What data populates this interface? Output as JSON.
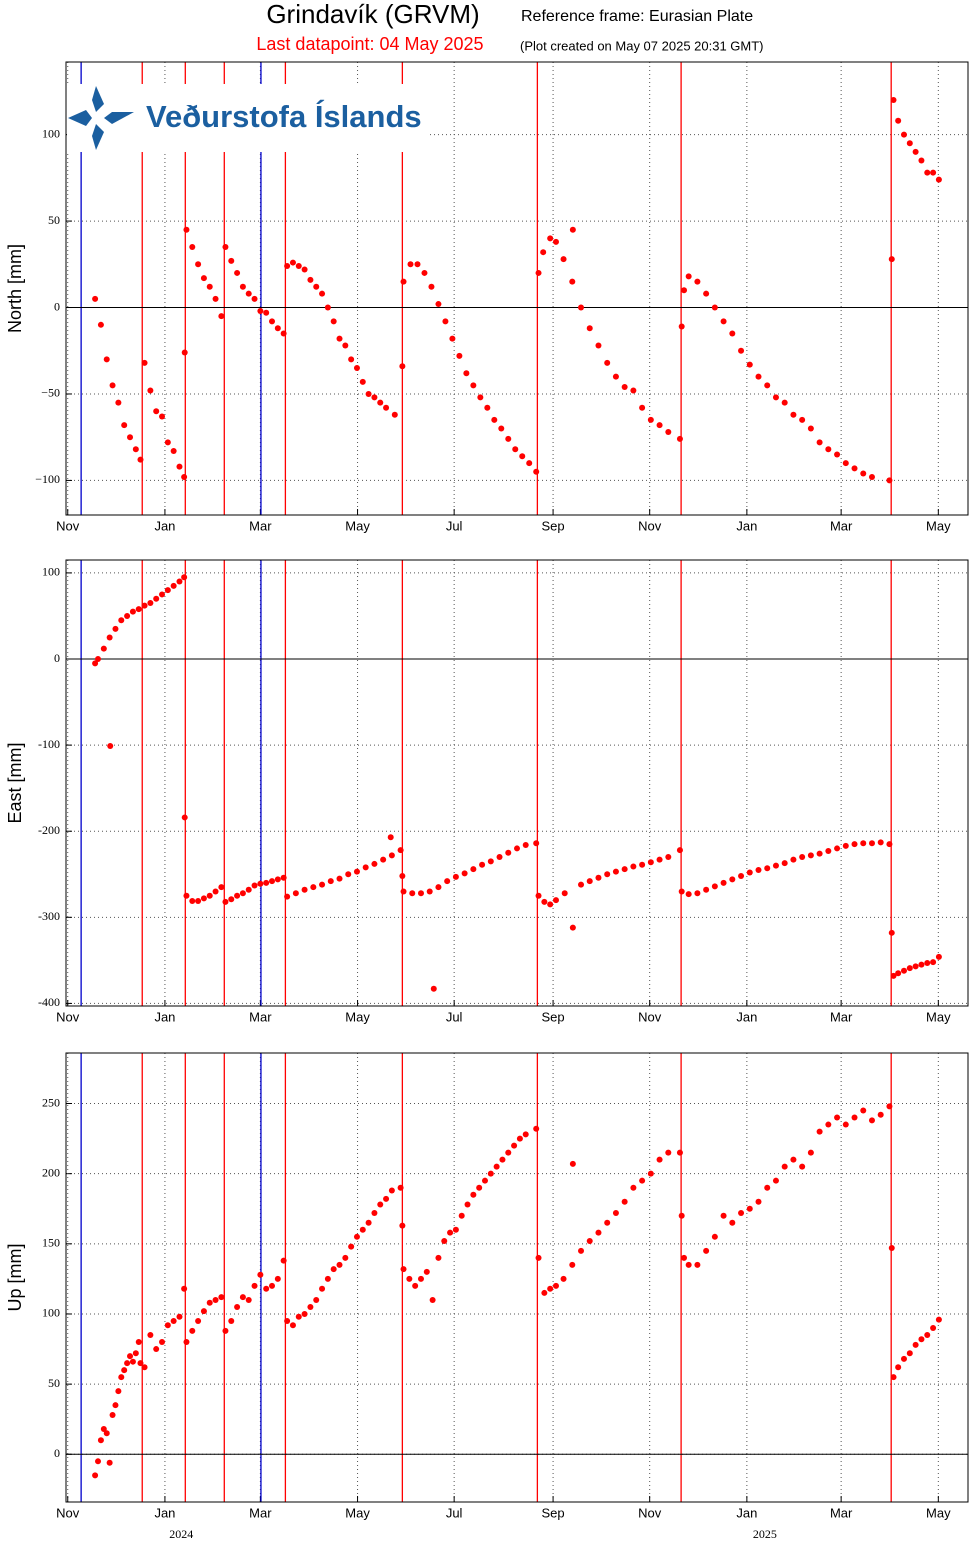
{
  "header": {
    "title": "Grindavík (GRVM)",
    "frame": "Reference frame: Eurasian Plate",
    "last": "Last datapoint: 04 May 2025",
    "created": "(Plot created on May 07 2025 20:31 GMT)"
  },
  "logo": "Veðurstofa Íslands",
  "events": [
    {
      "x": 2023.856,
      "color": "#0000cc"
    },
    {
      "x": 2023.961,
      "color": "#ff0000"
    },
    {
      "x": 2024.035,
      "color": "#ff0000"
    },
    {
      "x": 2024.102,
      "color": "#ff0000"
    },
    {
      "x": 2024.165,
      "color": "#0000cc"
    },
    {
      "x": 2024.207,
      "color": "#ff0000"
    },
    {
      "x": 2024.408,
      "color": "#ff0000"
    },
    {
      "x": 2024.64,
      "color": "#ff0000"
    },
    {
      "x": 2024.887,
      "color": "#ff0000"
    },
    {
      "x": 2025.248,
      "color": "#ff0000"
    }
  ],
  "chart_data": [
    {
      "type": "scatter",
      "ylabel": "North [mm]",
      "color": "#ff0000",
      "grid": true,
      "zero_line": true,
      "xlim": [
        2023.83,
        2025.38
      ],
      "ylim": [
        -120,
        142
      ],
      "xticks": [
        {
          "value": 2023.833,
          "label": "Nov"
        },
        {
          "value": 2024.0,
          "label": "Jan"
        },
        {
          "value": 2024.164,
          "label": "Mar"
        },
        {
          "value": 2024.331,
          "label": "May"
        },
        {
          "value": 2024.497,
          "label": "Jul"
        },
        {
          "value": 2024.667,
          "label": "Sep"
        },
        {
          "value": 2024.833,
          "label": "Nov"
        },
        {
          "value": 2025.0,
          "label": "Jan"
        },
        {
          "value": 2025.162,
          "label": "Mar"
        },
        {
          "value": 2025.329,
          "label": "May"
        }
      ],
      "yticks": [
        {
          "value": -100,
          "label": "−100"
        },
        {
          "value": -50,
          "label": "−50"
        },
        0,
        50,
        100
      ],
      "x": [
        2023.88,
        2023.89,
        2023.9,
        2023.91,
        2023.92,
        2023.93,
        2023.94,
        2023.95,
        2023.958,
        2023.965,
        2023.975,
        2023.985,
        2023.995,
        2024.005,
        2024.015,
        2024.025,
        2024.033,
        2024.034,
        2024.037,
        2024.047,
        2024.057,
        2024.067,
        2024.077,
        2024.087,
        2024.097,
        2024.104,
        2024.114,
        2024.124,
        2024.134,
        2024.144,
        2024.154,
        2024.164,
        2024.174,
        2024.184,
        2024.194,
        2024.204,
        2024.21,
        2024.22,
        2024.23,
        2024.24,
        2024.25,
        2024.26,
        2024.27,
        2024.28,
        2024.29,
        2024.3,
        2024.31,
        2024.32,
        2024.33,
        2024.34,
        2024.35,
        2024.36,
        2024.37,
        2024.38,
        2024.395,
        2024.408,
        2024.41,
        2024.422,
        2024.434,
        2024.446,
        2024.458,
        2024.47,
        2024.482,
        2024.494,
        2024.506,
        2024.518,
        2024.53,
        2024.542,
        2024.554,
        2024.566,
        2024.578,
        2024.59,
        2024.602,
        2024.614,
        2024.626,
        2024.638,
        2024.642,
        2024.65,
        2024.662,
        2024.672,
        2024.685,
        2024.7,
        2024.701,
        2024.715,
        2024.73,
        2024.745,
        2024.76,
        2024.775,
        2024.79,
        2024.805,
        2024.82,
        2024.835,
        2024.85,
        2024.865,
        2024.885,
        2024.888,
        2024.892,
        2024.9,
        2024.915,
        2024.93,
        2024.945,
        2024.96,
        2024.975,
        2024.99,
        2025.005,
        2025.02,
        2025.035,
        2025.05,
        2025.065,
        2025.08,
        2025.095,
        2025.11,
        2025.125,
        2025.14,
        2025.155,
        2025.17,
        2025.185,
        2025.2,
        2025.215,
        2025.245,
        2025.249,
        2025.252,
        2025.26,
        2025.27,
        2025.28,
        2025.29,
        2025.3,
        2025.31,
        2025.32,
        2025.33
      ],
      "values": [
        5,
        -10,
        -30,
        -45,
        -55,
        -68,
        -75,
        -82,
        -88,
        -32,
        -48,
        -60,
        -63,
        -78,
        -83,
        -92,
        -98,
        -26,
        45,
        35,
        25,
        17,
        12,
        5,
        -5,
        35,
        27,
        20,
        12,
        8,
        5,
        -2,
        -3,
        -8,
        -12,
        -15,
        24,
        26,
        24,
        22,
        16,
        12,
        8,
        0,
        -8,
        -18,
        -22,
        -30,
        -35,
        -43,
        -50,
        -52,
        -55,
        -58,
        -62,
        -34,
        15,
        25,
        25,
        20,
        12,
        2,
        -8,
        -18,
        -28,
        -38,
        -45,
        -52,
        -58,
        -65,
        -70,
        -76,
        -82,
        -86,
        -90,
        -95,
        20,
        32,
        40,
        38,
        28,
        15,
        45,
        0,
        -12,
        -22,
        -32,
        -40,
        -46,
        -48,
        -58,
        -65,
        -68,
        -72,
        -76,
        -11,
        10,
        18,
        15,
        8,
        0,
        -8,
        -15,
        -25,
        -33,
        -40,
        -45,
        -52,
        -55,
        -62,
        -65,
        -70,
        -78,
        -82,
        -85,
        -90,
        -93,
        -96,
        -98,
        -100,
        28,
        120,
        108,
        100,
        95,
        90,
        85,
        78,
        78,
        74
      ]
    },
    {
      "type": "scatter",
      "ylabel": "East [mm]",
      "color": "#ff0000",
      "grid": true,
      "zero_line": true,
      "xlim": [
        2023.83,
        2025.38
      ],
      "ylim": [
        -403,
        115
      ],
      "xticks": [
        {
          "value": 2023.833,
          "label": "Nov"
        },
        {
          "value": 2024.0,
          "label": "Jan"
        },
        {
          "value": 2024.164,
          "label": "Mar"
        },
        {
          "value": 2024.331,
          "label": "May"
        },
        {
          "value": 2024.497,
          "label": "Jul"
        },
        {
          "value": 2024.667,
          "label": "Sep"
        },
        {
          "value": 2024.833,
          "label": "Nov"
        },
        {
          "value": 2025.0,
          "label": "Jan"
        },
        {
          "value": 2025.162,
          "label": "Mar"
        },
        {
          "value": 2025.329,
          "label": "May"
        }
      ],
      "yticks": [
        -400,
        -300,
        -200,
        -100,
        0,
        100
      ],
      "x": [
        2023.88,
        2023.885,
        2023.895,
        2023.905,
        2023.906,
        2023.915,
        2023.925,
        2023.935,
        2023.945,
        2023.955,
        2023.965,
        2023.975,
        2023.985,
        2023.995,
        2024.005,
        2024.015,
        2024.025,
        2024.033,
        2024.034,
        2024.037,
        2024.047,
        2024.057,
        2024.067,
        2024.077,
        2024.087,
        2024.097,
        2024.104,
        2024.114,
        2024.124,
        2024.134,
        2024.144,
        2024.154,
        2024.164,
        2024.174,
        2024.184,
        2024.194,
        2024.204,
        2024.21,
        2024.225,
        2024.24,
        2024.255,
        2024.27,
        2024.285,
        2024.3,
        2024.315,
        2024.33,
        2024.345,
        2024.36,
        2024.375,
        2024.388,
        2024.39,
        2024.405,
        2024.408,
        2024.41,
        2024.425,
        2024.44,
        2024.455,
        2024.462,
        2024.47,
        2024.485,
        2024.5,
        2024.515,
        2024.53,
        2024.545,
        2024.56,
        2024.575,
        2024.59,
        2024.605,
        2024.62,
        2024.638,
        2024.642,
        2024.652,
        2024.662,
        2024.672,
        2024.687,
        2024.701,
        2024.715,
        2024.73,
        2024.745,
        2024.76,
        2024.775,
        2024.79,
        2024.805,
        2024.82,
        2024.835,
        2024.85,
        2024.865,
        2024.885,
        2024.888,
        2024.9,
        2024.915,
        2024.93,
        2024.945,
        2024.96,
        2024.975,
        2024.99,
        2025.005,
        2025.02,
        2025.035,
        2025.05,
        2025.065,
        2025.08,
        2025.095,
        2025.11,
        2025.125,
        2025.14,
        2025.155,
        2025.17,
        2025.185,
        2025.2,
        2025.215,
        2025.23,
        2025.245,
        2025.249,
        2025.252,
        2025.26,
        2025.27,
        2025.28,
        2025.29,
        2025.3,
        2025.31,
        2025.32,
        2025.33
      ],
      "values": [
        -5,
        0,
        12,
        25,
        -101,
        35,
        45,
        50,
        55,
        58,
        62,
        65,
        70,
        75,
        80,
        85,
        90,
        95,
        -184,
        -275,
        -281,
        -281,
        -278,
        -275,
        -270,
        -265,
        -282,
        -279,
        -275,
        -272,
        -268,
        -263,
        -261,
        -260,
        -258,
        -256,
        -254,
        -276,
        -272,
        -268,
        -265,
        -262,
        -258,
        -255,
        -250,
        -247,
        -242,
        -238,
        -233,
        -207,
        -228,
        -222,
        -252,
        -270,
        -272,
        -272,
        -270,
        -383,
        -265,
        -258,
        -253,
        -249,
        -244,
        -239,
        -235,
        -230,
        -225,
        -220,
        -216,
        -214,
        -275,
        -282,
        -285,
        -280,
        -272,
        -312,
        -262,
        -258,
        -254,
        -250,
        -247,
        -244,
        -241,
        -239,
        -236,
        -233,
        -230,
        -222,
        -270,
        -273,
        -272,
        -268,
        -264,
        -260,
        -256,
        -252,
        -248,
        -245,
        -243,
        -240,
        -237,
        -233,
        -230,
        -228,
        -226,
        -223,
        -220,
        -217,
        -215,
        -214,
        -214,
        -213,
        -215,
        -318,
        -368,
        -365,
        -362,
        -359,
        -357,
        -355,
        -353,
        -352,
        -346
      ]
    },
    {
      "type": "scatter",
      "ylabel": "Up [mm]",
      "color": "#ff0000",
      "grid": true,
      "zero_line": true,
      "xlim": [
        2023.83,
        2025.38
      ],
      "ylim": [
        -34,
        286
      ],
      "xticks": [
        {
          "value": 2023.833,
          "label": "Nov"
        },
        {
          "value": 2024.0,
          "label": "Jan"
        },
        {
          "value": 2024.164,
          "label": "Mar"
        },
        {
          "value": 2024.331,
          "label": "May"
        },
        {
          "value": 2024.497,
          "label": "Jul"
        },
        {
          "value": 2024.667,
          "label": "Sep"
        },
        {
          "value": 2024.833,
          "label": "Nov"
        },
        {
          "value": 2025.0,
          "label": "Jan"
        },
        {
          "value": 2025.162,
          "label": "Mar"
        },
        {
          "value": 2025.329,
          "label": "May"
        }
      ],
      "year_ticks": [
        {
          "value": 2024.028,
          "label": "2024"
        },
        {
          "value": 2025.031,
          "label": "2025"
        }
      ],
      "yticks": [
        0,
        50,
        100,
        150,
        200,
        250
      ],
      "x": [
        2023.88,
        2023.885,
        2023.89,
        2023.895,
        2023.9,
        2023.905,
        2023.91,
        2023.915,
        2023.92,
        2023.925,
        2023.93,
        2023.935,
        2023.94,
        2023.945,
        2023.95,
        2023.955,
        2023.958,
        2023.965,
        2023.975,
        2023.985,
        2023.995,
        2024.005,
        2024.015,
        2024.025,
        2024.033,
        2024.037,
        2024.047,
        2024.057,
        2024.067,
        2024.077,
        2024.087,
        2024.097,
        2024.104,
        2024.114,
        2024.124,
        2024.134,
        2024.144,
        2024.154,
        2024.164,
        2024.174,
        2024.184,
        2024.194,
        2024.204,
        2024.21,
        2024.22,
        2024.23,
        2024.24,
        2024.25,
        2024.26,
        2024.27,
        2024.28,
        2024.29,
        2024.3,
        2024.31,
        2024.32,
        2024.33,
        2024.34,
        2024.35,
        2024.36,
        2024.37,
        2024.38,
        2024.39,
        2024.405,
        2024.408,
        2024.41,
        2024.42,
        2024.43,
        2024.44,
        2024.45,
        2024.46,
        2024.47,
        2024.48,
        2024.49,
        2024.5,
        2024.51,
        2024.52,
        2024.53,
        2024.54,
        2024.55,
        2024.56,
        2024.57,
        2024.58,
        2024.59,
        2024.6,
        2024.61,
        2024.62,
        2024.638,
        2024.642,
        2024.652,
        2024.662,
        2024.672,
        2024.685,
        2024.7,
        2024.701,
        2024.715,
        2024.73,
        2024.745,
        2024.76,
        2024.775,
        2024.79,
        2024.805,
        2024.82,
        2024.835,
        2024.85,
        2024.865,
        2024.885,
        2024.888,
        2024.892,
        2024.9,
        2024.915,
        2024.93,
        2024.945,
        2024.96,
        2024.975,
        2024.99,
        2025.005,
        2025.02,
        2025.035,
        2025.05,
        2025.065,
        2025.08,
        2025.095,
        2025.11,
        2025.125,
        2025.14,
        2025.155,
        2025.17,
        2025.185,
        2025.2,
        2025.215,
        2025.23,
        2025.245,
        2025.249,
        2025.252,
        2025.26,
        2025.27,
        2025.28,
        2025.29,
        2025.3,
        2025.31,
        2025.32,
        2025.33
      ],
      "values": [
        -15,
        -5,
        10,
        18,
        15,
        -6,
        28,
        35,
        45,
        55,
        60,
        65,
        70,
        66,
        72,
        80,
        65,
        62,
        85,
        75,
        80,
        92,
        95,
        98,
        118,
        80,
        88,
        95,
        102,
        108,
        110,
        112,
        88,
        95,
        105,
        112,
        110,
        120,
        128,
        118,
        120,
        125,
        138,
        95,
        92,
        98,
        100,
        105,
        110,
        118,
        125,
        132,
        135,
        140,
        148,
        155,
        160,
        165,
        172,
        178,
        182,
        188,
        190,
        163,
        132,
        125,
        120,
        125,
        130,
        110,
        140,
        152,
        158,
        160,
        170,
        178,
        185,
        190,
        195,
        200,
        205,
        210,
        215,
        220,
        225,
        228,
        232,
        140,
        115,
        118,
        120,
        125,
        135,
        207,
        145,
        152,
        158,
        165,
        172,
        180,
        190,
        195,
        200,
        210,
        215,
        215,
        170,
        140,
        135,
        135,
        145,
        155,
        170,
        165,
        172,
        175,
        180,
        190,
        195,
        205,
        210,
        205,
        215,
        230,
        235,
        240,
        235,
        240,
        245,
        238,
        242,
        248,
        147,
        55,
        62,
        68,
        72,
        78,
        82,
        85,
        90,
        96
      ]
    }
  ]
}
